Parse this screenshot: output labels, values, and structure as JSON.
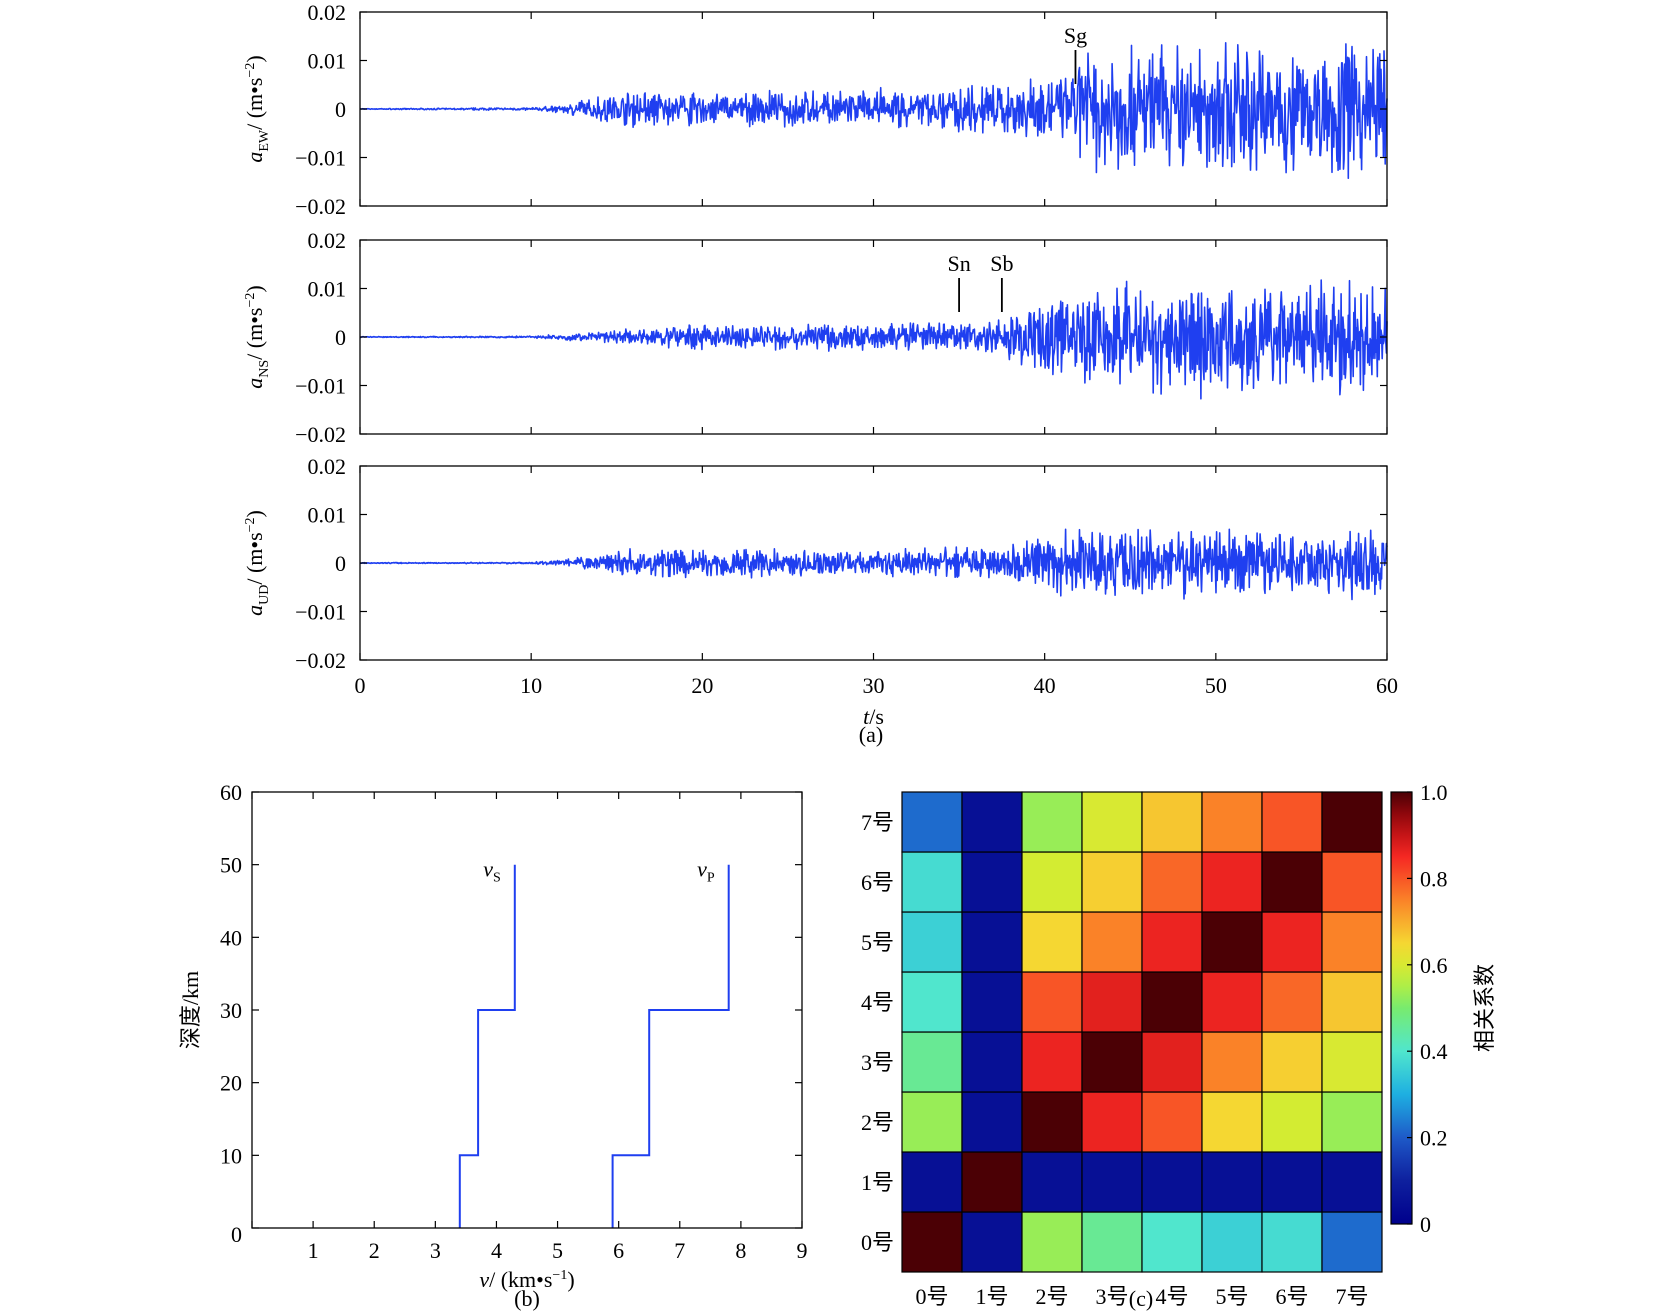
{
  "panel_labels": {
    "a": "(a)",
    "b": "(b)",
    "c": "(c)"
  },
  "chart_data": [
    {
      "id": "a",
      "type": "line",
      "x_range": [
        0,
        60
      ],
      "x_ticks": [
        0,
        10,
        20,
        30,
        40,
        50,
        60
      ],
      "xlabel": {
        "var": "t",
        "unit": "/s"
      },
      "line_color": "#1f3ff0",
      "grid": false,
      "panels": [
        {
          "name": "EW",
          "ylabel": {
            "var": "a",
            "sub": "EW",
            "unit": "/ (m•s",
            "sup": "−2",
            "close": ")"
          },
          "y_range": [
            -0.02,
            0.02
          ],
          "y_ticks": [
            0.02,
            0.01,
            0,
            -0.01,
            -0.02
          ],
          "y_tick_labels": [
            "0.02",
            "0.01",
            "0",
            "−0.01",
            "−0.02"
          ],
          "envelope": [
            [
              0,
              0.0001
            ],
            [
              10,
              0.0003
            ],
            [
              12,
              0.001
            ],
            [
              14,
              0.003
            ],
            [
              16,
              0.004
            ],
            [
              20,
              0.004
            ],
            [
              25,
              0.004
            ],
            [
              30,
              0.0045
            ],
            [
              35,
              0.005
            ],
            [
              38,
              0.006
            ],
            [
              40,
              0.007
            ],
            [
              41.5,
              0.008
            ],
            [
              42,
              0.0135
            ],
            [
              45,
              0.014
            ],
            [
              50,
              0.0145
            ],
            [
              55,
              0.015
            ],
            [
              60,
              0.016
            ]
          ],
          "annotations": [
            {
              "label": "Sg",
              "t": 41.8
            }
          ]
        },
        {
          "name": "NS",
          "ylabel": {
            "var": "a",
            "sub": "NS",
            "unit": "/ (m•s",
            "sup": "−2",
            "close": ")"
          },
          "y_range": [
            -0.02,
            0.02
          ],
          "y_ticks": [
            0.02,
            0.01,
            0,
            -0.01,
            -0.02
          ],
          "y_tick_labels": [
            "0.02",
            "0.01",
            "0",
            "−0.01",
            "−0.02"
          ],
          "envelope": [
            [
              0,
              0.0001
            ],
            [
              10,
              0.0002
            ],
            [
              12,
              0.0008
            ],
            [
              15,
              0.0015
            ],
            [
              18,
              0.0025
            ],
            [
              25,
              0.003
            ],
            [
              30,
              0.003
            ],
            [
              35,
              0.0035
            ],
            [
              37,
              0.004
            ],
            [
              38.5,
              0.006
            ],
            [
              40,
              0.009
            ],
            [
              43,
              0.013
            ],
            [
              47,
              0.014
            ],
            [
              50,
              0.013
            ],
            [
              55,
              0.012
            ],
            [
              58,
              0.014
            ],
            [
              60,
              0.011
            ]
          ],
          "annotations": [
            {
              "label": "Sn",
              "t": 35.0
            },
            {
              "label": "Sb",
              "t": 37.5
            }
          ]
        },
        {
          "name": "UD",
          "ylabel": {
            "var": "a",
            "sub": "UD",
            "unit": "/ (m•s",
            "sup": "−2",
            "close": ")"
          },
          "y_range": [
            -0.02,
            0.02
          ],
          "y_ticks": [
            0.02,
            0.01,
            0,
            -0.01,
            -0.02
          ],
          "y_tick_labels": [
            "0.02",
            "0.01",
            "0",
            "−0.01",
            "−0.02"
          ],
          "envelope": [
            [
              0,
              0.0001
            ],
            [
              10,
              0.0002
            ],
            [
              12,
              0.0008
            ],
            [
              14,
              0.002
            ],
            [
              15,
              0.003
            ],
            [
              20,
              0.0035
            ],
            [
              25,
              0.003
            ],
            [
              30,
              0.003
            ],
            [
              35,
              0.0035
            ],
            [
              38,
              0.004
            ],
            [
              40,
              0.006
            ],
            [
              41.5,
              0.008
            ],
            [
              45,
              0.008
            ],
            [
              50,
              0.0075
            ],
            [
              55,
              0.007
            ],
            [
              60,
              0.009
            ]
          ],
          "annotations": []
        }
      ]
    },
    {
      "id": "b",
      "type": "line",
      "x_range": [
        0,
        9
      ],
      "x_ticks": [
        0,
        1,
        2,
        3,
        4,
        5,
        6,
        7,
        8,
        9
      ],
      "y_range": [
        0,
        60
      ],
      "y_ticks": [
        0,
        10,
        20,
        30,
        40,
        50,
        60
      ],
      "xlabel": {
        "var": "v",
        "unit": "/ (km•s",
        "sup": "−1",
        "close": ")"
      },
      "ylabel": "深度/km",
      "line_color": "#1f3ff0",
      "grid": false,
      "series": [
        {
          "name": "v",
          "sub": "S",
          "points": [
            [
              3.4,
              0
            ],
            [
              3.4,
              10
            ],
            [
              3.7,
              10
            ],
            [
              3.7,
              30
            ],
            [
              4.3,
              30
            ],
            [
              4.3,
              50
            ]
          ]
        },
        {
          "name": "v",
          "sub": "P",
          "points": [
            [
              5.9,
              0
            ],
            [
              5.9,
              10
            ],
            [
              6.5,
              10
            ],
            [
              6.5,
              30
            ],
            [
              7.8,
              30
            ],
            [
              7.8,
              50
            ]
          ]
        }
      ]
    },
    {
      "id": "c",
      "type": "heatmap",
      "categories": [
        "0号",
        "1号",
        "2号",
        "3号",
        "4号",
        "5号",
        "6号",
        "7号"
      ],
      "values": [
        [
          1.0,
          0.05,
          0.53,
          0.46,
          0.4,
          0.36,
          0.38,
          0.22
        ],
        [
          0.05,
          1.0,
          0.05,
          0.05,
          0.05,
          0.05,
          0.05,
          0.05
        ],
        [
          0.53,
          0.05,
          1.0,
          0.86,
          0.8,
          0.65,
          0.59,
          0.53
        ],
        [
          0.46,
          0.05,
          0.86,
          1.0,
          0.87,
          0.75,
          0.66,
          0.6
        ],
        [
          0.4,
          0.05,
          0.8,
          0.87,
          1.0,
          0.86,
          0.78,
          0.67
        ],
        [
          0.36,
          0.05,
          0.65,
          0.75,
          0.86,
          1.0,
          0.86,
          0.75
        ],
        [
          0.38,
          0.05,
          0.59,
          0.66,
          0.78,
          0.86,
          1.0,
          0.8
        ],
        [
          0.22,
          0.05,
          0.53,
          0.6,
          0.67,
          0.75,
          0.8,
          1.0
        ]
      ],
      "colorbar": {
        "label": "相关系数",
        "range": [
          0,
          1
        ],
        "ticks": [
          0,
          0.2,
          0.4,
          0.6,
          0.8,
          1.0
        ],
        "tick_labels": [
          "0",
          "0.2",
          "0.4",
          "0.6",
          "0.8",
          "1.0"
        ]
      }
    }
  ]
}
